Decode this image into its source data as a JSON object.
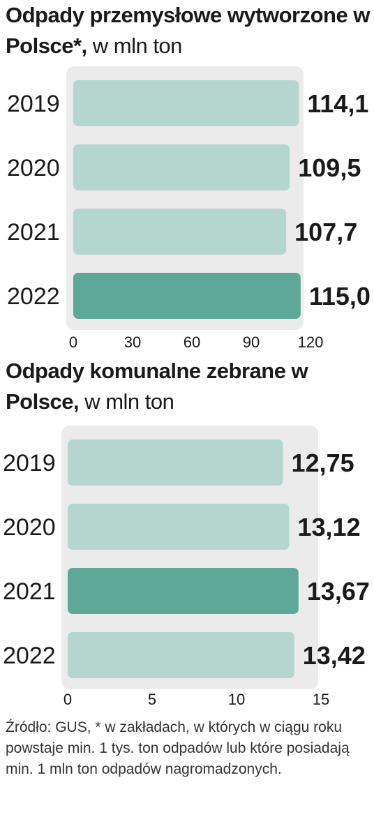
{
  "colors": {
    "bar": "#b4d6cf",
    "bar_highlight": "#5ea898",
    "panel": "#ebebeb",
    "text": "#1a1a1a"
  },
  "chart_data": [
    {
      "type": "bar",
      "orientation": "horizontal",
      "title_bold": "Odpady przemysłowe wytworzone w Polsce*,",
      "title_unit": "w mln ton",
      "categories": [
        "2019",
        "2020",
        "2021",
        "2022"
      ],
      "values": [
        114.1,
        109.5,
        107.7,
        115.0
      ],
      "value_labels": [
        "114,1",
        "109,5",
        "107,7",
        "115,0"
      ],
      "highlight_index": 3,
      "xlim": [
        0,
        120
      ],
      "xticks": [
        0,
        30,
        60,
        90,
        120
      ],
      "xtick_labels": [
        "0",
        "30",
        "60",
        "90",
        "120"
      ]
    },
    {
      "type": "bar",
      "orientation": "horizontal",
      "title_bold": "Odpady komunalne zebrane w Polsce,",
      "title_unit": "w mln ton",
      "categories": [
        "2019",
        "2020",
        "2021",
        "2022"
      ],
      "values": [
        12.75,
        13.12,
        13.67,
        13.42
      ],
      "value_labels": [
        "12,75",
        "13,12",
        "13,67",
        "13,42"
      ],
      "highlight_index": 2,
      "xlim": [
        0,
        15
      ],
      "xticks": [
        0,
        5,
        10,
        15
      ],
      "xtick_labels": [
        "0",
        "5",
        "10",
        "15"
      ]
    }
  ],
  "source": "Źródło: GUS, * w zakładach, w których w ciągu roku powstaje min. 1 tys. ton odpadów lub które posiadają min.  1 mln ton odpadów nagromadzonych."
}
